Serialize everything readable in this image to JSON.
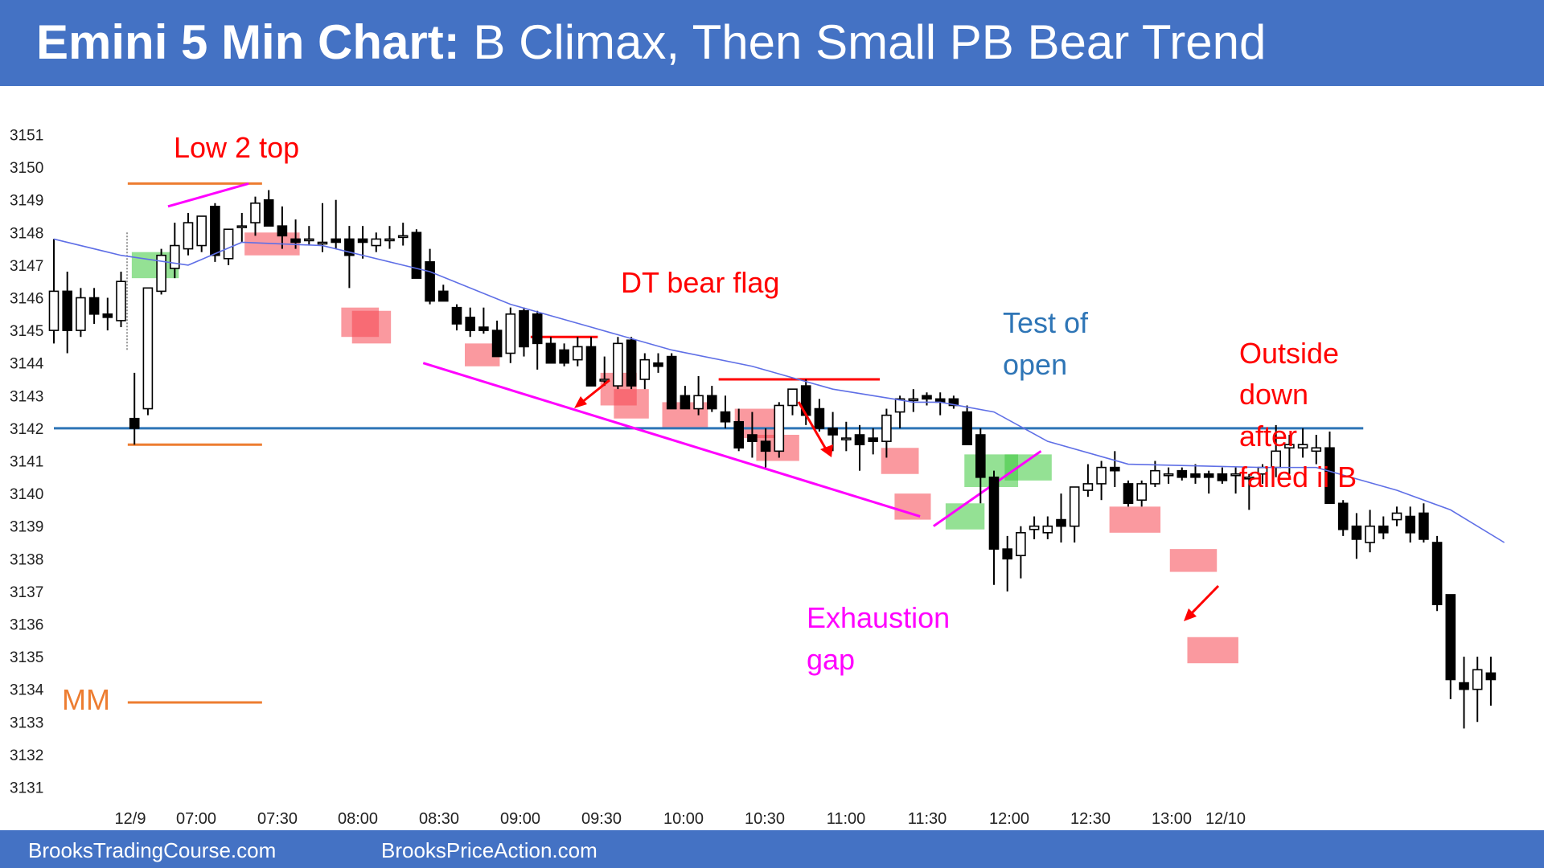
{
  "header": {
    "title_bold": "Emini 5 Min Chart:",
    "title_rest": "B Climax, Then Small PB Bear Trend",
    "background": "#4472c4"
  },
  "footer": {
    "left_text": "BrooksTradingCourse.com",
    "right_text": "BrooksPriceAction.com"
  },
  "chart_data": {
    "type": "candlestick",
    "title": "",
    "y_ticks": [
      3151,
      3150,
      3149,
      3148,
      3147,
      3146,
      3145,
      3144,
      3143,
      3142,
      3141,
      3140,
      3139,
      3138,
      3137,
      3136,
      3135,
      3134,
      3133,
      3132,
      3131
    ],
    "ylim": [
      3130.5,
      3151.5
    ],
    "x_ticks": [
      "12/9",
      "07:00",
      "07:30",
      "08:00",
      "08:30",
      "09:00",
      "09:30",
      "10:00",
      "10:30",
      "11:00",
      "11:30",
      "12:00",
      "12:30",
      "13:00",
      "12/10"
    ],
    "grid": false,
    "candles": [
      {
        "o": 3145,
        "h": 3147.8,
        "l": 3144.6,
        "c": 3146.2
      },
      {
        "o": 3146.2,
        "h": 3146.8,
        "l": 3144.3,
        "c": 3145
      },
      {
        "o": 3145,
        "h": 3146.3,
        "l": 3144.8,
        "c": 3146
      },
      {
        "o": 3146,
        "h": 3146.3,
        "l": 3145.2,
        "c": 3145.5
      },
      {
        "o": 3145.5,
        "h": 3146,
        "l": 3145,
        "c": 3145.4
      },
      {
        "o": 3145.3,
        "h": 3146.8,
        "l": 3145.1,
        "c": 3146.5
      },
      {
        "o": 3142.3,
        "h": 3143.7,
        "l": 3141.5,
        "c": 3142
      },
      {
        "o": 3142.6,
        "h": 3146.3,
        "l": 3142.4,
        "c": 3146.3
      },
      {
        "o": 3146.2,
        "h": 3147.5,
        "l": 3146.1,
        "c": 3147.3
      },
      {
        "o": 3146.9,
        "h": 3148.3,
        "l": 3146.6,
        "c": 3147.6
      },
      {
        "o": 3147.5,
        "h": 3148.6,
        "l": 3147.3,
        "c": 3148.3
      },
      {
        "o": 3147.6,
        "h": 3148.5,
        "l": 3147.4,
        "c": 3148.5
      },
      {
        "o": 3148.8,
        "h": 3148.9,
        "l": 3147.1,
        "c": 3147.3
      },
      {
        "o": 3147.2,
        "h": 3148.1,
        "l": 3147.0,
        "c": 3148.1
      },
      {
        "o": 3148.2,
        "h": 3148.6,
        "l": 3147.7,
        "c": 3148.2
      },
      {
        "o": 3148.3,
        "h": 3149.1,
        "l": 3147.9,
        "c": 3148.9
      },
      {
        "o": 3149.0,
        "h": 3149.3,
        "l": 3148.2,
        "c": 3148.2
      },
      {
        "o": 3148.2,
        "h": 3148.8,
        "l": 3147.5,
        "c": 3147.9
      },
      {
        "o": 3147.8,
        "h": 3148.4,
        "l": 3147.5,
        "c": 3147.7
      },
      {
        "o": 3147.8,
        "h": 3148.2,
        "l": 3147.6,
        "c": 3147.8
      },
      {
        "o": 3147.7,
        "h": 3148.9,
        "l": 3147.4,
        "c": 3147.7
      },
      {
        "o": 3147.8,
        "h": 3149.0,
        "l": 3147.5,
        "c": 3147.7
      },
      {
        "o": 3147.8,
        "h": 3148.2,
        "l": 3146.3,
        "c": 3147.3
      },
      {
        "o": 3147.8,
        "h": 3148.2,
        "l": 3147.2,
        "c": 3147.7
      },
      {
        "o": 3147.6,
        "h": 3148.0,
        "l": 3147.4,
        "c": 3147.8
      },
      {
        "o": 3147.8,
        "h": 3148.2,
        "l": 3147.5,
        "c": 3147.8
      },
      {
        "o": 3147.9,
        "h": 3148.3,
        "l": 3147.6,
        "c": 3147.9
      },
      {
        "o": 3148.0,
        "h": 3148.1,
        "l": 3146.6,
        "c": 3146.6
      },
      {
        "o": 3147.1,
        "h": 3147.5,
        "l": 3145.8,
        "c": 3145.9
      },
      {
        "o": 3146.2,
        "h": 3146.4,
        "l": 3145.9,
        "c": 3145.9
      },
      {
        "o": 3145.7,
        "h": 3145.8,
        "l": 3145.0,
        "c": 3145.2
      },
      {
        "o": 3145.4,
        "h": 3145.7,
        "l": 3144.8,
        "c": 3145.0
      },
      {
        "o": 3145.1,
        "h": 3145.7,
        "l": 3144.9,
        "c": 3145.0
      },
      {
        "o": 3145.0,
        "h": 3145.3,
        "l": 3144.2,
        "c": 3144.2
      },
      {
        "o": 3144.3,
        "h": 3145.7,
        "l": 3144.0,
        "c": 3145.5
      },
      {
        "o": 3145.6,
        "h": 3145.7,
        "l": 3144.2,
        "c": 3144.5
      },
      {
        "o": 3145.5,
        "h": 3145.6,
        "l": 3143.8,
        "c": 3144.6
      },
      {
        "o": 3144.6,
        "h": 3144.8,
        "l": 3144.0,
        "c": 3144.0
      },
      {
        "o": 3144.4,
        "h": 3144.6,
        "l": 3143.9,
        "c": 3144.0
      },
      {
        "o": 3144.1,
        "h": 3144.8,
        "l": 3143.9,
        "c": 3144.5
      },
      {
        "o": 3144.5,
        "h": 3144.8,
        "l": 3143.3,
        "c": 3143.3
      },
      {
        "o": 3143.5,
        "h": 3144.2,
        "l": 3143.3,
        "c": 3143.5
      },
      {
        "o": 3143.3,
        "h": 3144.8,
        "l": 3143.2,
        "c": 3144.6
      },
      {
        "o": 3144.7,
        "h": 3144.8,
        "l": 3143.2,
        "c": 3143.3
      },
      {
        "o": 3143.5,
        "h": 3144.3,
        "l": 3143.2,
        "c": 3144.1
      },
      {
        "o": 3144.0,
        "h": 3144.3,
        "l": 3143.7,
        "c": 3143.9
      },
      {
        "o": 3144.2,
        "h": 3144.3,
        "l": 3142.6,
        "c": 3142.6
      },
      {
        "o": 3143.0,
        "h": 3143.3,
        "l": 3142.6,
        "c": 3142.6
      },
      {
        "o": 3142.6,
        "h": 3143.6,
        "l": 3142.4,
        "c": 3143.0
      },
      {
        "o": 3143.0,
        "h": 3143.3,
        "l": 3142.5,
        "c": 3142.6
      },
      {
        "o": 3142.5,
        "h": 3143.0,
        "l": 3142.0,
        "c": 3142.2
      },
      {
        "o": 3142.2,
        "h": 3142.6,
        "l": 3141.3,
        "c": 3141.4
      },
      {
        "o": 3141.8,
        "h": 3142.5,
        "l": 3141.1,
        "c": 3141.6
      },
      {
        "o": 3141.6,
        "h": 3142.0,
        "l": 3140.8,
        "c": 3141.3
      },
      {
        "o": 3141.3,
        "h": 3142.8,
        "l": 3141.1,
        "c": 3142.7
      },
      {
        "o": 3142.7,
        "h": 3143.2,
        "l": 3142.4,
        "c": 3143.2
      },
      {
        "o": 3143.3,
        "h": 3143.5,
        "l": 3142.1,
        "c": 3142.4
      },
      {
        "o": 3142.6,
        "h": 3142.9,
        "l": 3141.9,
        "c": 3142.0
      },
      {
        "o": 3142.0,
        "h": 3142.5,
        "l": 3141.3,
        "c": 3141.8
      },
      {
        "o": 3141.7,
        "h": 3142.2,
        "l": 3141.3,
        "c": 3141.7
      },
      {
        "o": 3141.8,
        "h": 3142.1,
        "l": 3140.7,
        "c": 3141.5
      },
      {
        "o": 3141.7,
        "h": 3142.0,
        "l": 3141.2,
        "c": 3141.6
      },
      {
        "o": 3141.6,
        "h": 3142.6,
        "l": 3141.1,
        "c": 3142.4
      },
      {
        "o": 3142.5,
        "h": 3143.0,
        "l": 3142.0,
        "c": 3142.9
      },
      {
        "o": 3142.9,
        "h": 3143.2,
        "l": 3142.5,
        "c": 3142.9
      },
      {
        "o": 3143.0,
        "h": 3143.1,
        "l": 3142.7,
        "c": 3142.9
      },
      {
        "o": 3142.9,
        "h": 3143.1,
        "l": 3142.4,
        "c": 3142.8
      },
      {
        "o": 3142.9,
        "h": 3143.0,
        "l": 3142.6,
        "c": 3142.7
      },
      {
        "o": 3142.5,
        "h": 3142.7,
        "l": 3141.5,
        "c": 3141.5
      },
      {
        "o": 3141.8,
        "h": 3142.0,
        "l": 3139.7,
        "c": 3140.5
      },
      {
        "o": 3140.5,
        "h": 3140.7,
        "l": 3137.2,
        "c": 3138.3
      },
      {
        "o": 3138.3,
        "h": 3138.7,
        "l": 3137.0,
        "c": 3138.0
      },
      {
        "o": 3138.1,
        "h": 3139.0,
        "l": 3137.4,
        "c": 3138.8
      },
      {
        "o": 3138.9,
        "h": 3139.3,
        "l": 3138.6,
        "c": 3139.0
      },
      {
        "o": 3138.8,
        "h": 3139.3,
        "l": 3138.6,
        "c": 3139.0
      },
      {
        "o": 3139.2,
        "h": 3140.0,
        "l": 3138.5,
        "c": 3139.0
      },
      {
        "o": 3139.0,
        "h": 3140.2,
        "l": 3138.5,
        "c": 3140.2
      },
      {
        "o": 3140.1,
        "h": 3140.9,
        "l": 3139.9,
        "c": 3140.3
      },
      {
        "o": 3140.3,
        "h": 3141.0,
        "l": 3139.8,
        "c": 3140.8
      },
      {
        "o": 3140.8,
        "h": 3141.3,
        "l": 3140.2,
        "c": 3140.7
      },
      {
        "o": 3140.3,
        "h": 3140.4,
        "l": 3139.6,
        "c": 3139.7
      },
      {
        "o": 3139.8,
        "h": 3140.4,
        "l": 3139.6,
        "c": 3140.3
      },
      {
        "o": 3140.3,
        "h": 3141.0,
        "l": 3140.2,
        "c": 3140.7
      },
      {
        "o": 3140.6,
        "h": 3140.8,
        "l": 3140.3,
        "c": 3140.6
      },
      {
        "o": 3140.7,
        "h": 3140.8,
        "l": 3140.4,
        "c": 3140.5
      },
      {
        "o": 3140.6,
        "h": 3140.9,
        "l": 3140.3,
        "c": 3140.5
      },
      {
        "o": 3140.6,
        "h": 3140.7,
        "l": 3140.0,
        "c": 3140.5
      },
      {
        "o": 3140.6,
        "h": 3140.8,
        "l": 3140.3,
        "c": 3140.4
      },
      {
        "o": 3140.6,
        "h": 3140.8,
        "l": 3140.0,
        "c": 3140.6
      },
      {
        "o": 3140.5,
        "h": 3140.6,
        "l": 3139.5,
        "c": 3140.5
      },
      {
        "o": 3140.6,
        "h": 3140.9,
        "l": 3140.3,
        "c": 3140.8
      },
      {
        "o": 3140.8,
        "h": 3142.1,
        "l": 3140.5,
        "c": 3141.3
      },
      {
        "o": 3141.4,
        "h": 3141.8,
        "l": 3140.6,
        "c": 3141.5
      },
      {
        "o": 3141.4,
        "h": 3142.0,
        "l": 3141.1,
        "c": 3141.5
      },
      {
        "o": 3141.3,
        "h": 3141.8,
        "l": 3140.9,
        "c": 3141.4
      },
      {
        "o": 3141.4,
        "h": 3141.9,
        "l": 3139.7,
        "c": 3139.7
      },
      {
        "o": 3139.7,
        "h": 3139.8,
        "l": 3138.7,
        "c": 3138.9
      },
      {
        "o": 3139.0,
        "h": 3139.4,
        "l": 3138.0,
        "c": 3138.6
      },
      {
        "o": 3138.5,
        "h": 3139.5,
        "l": 3138.2,
        "c": 3139.0
      },
      {
        "o": 3139.0,
        "h": 3139.3,
        "l": 3138.6,
        "c": 3138.8
      },
      {
        "o": 3139.2,
        "h": 3139.6,
        "l": 3139.0,
        "c": 3139.4
      },
      {
        "o": 3139.3,
        "h": 3139.6,
        "l": 3138.5,
        "c": 3138.8
      },
      {
        "o": 3139.4,
        "h": 3139.7,
        "l": 3138.5,
        "c": 3138.6
      },
      {
        "o": 3138.5,
        "h": 3138.7,
        "l": 3136.4,
        "c": 3136.6
      },
      {
        "o": 3136.9,
        "h": 3136.9,
        "l": 3133.7,
        "c": 3134.3
      },
      {
        "o": 3134.2,
        "h": 3135.0,
        "l": 3132.8,
        "c": 3134.0
      },
      {
        "o": 3134.0,
        "h": 3135.0,
        "l": 3133.0,
        "c": 3134.6
      },
      {
        "o": 3134.5,
        "h": 3135.0,
        "l": 3133.5,
        "c": 3134.3
      }
    ],
    "ema": [
      [
        0,
        3147.8
      ],
      [
        5,
        3147.3
      ],
      [
        10,
        3147
      ],
      [
        14,
        3147.7
      ],
      [
        20,
        3147.6
      ],
      [
        28,
        3146.8
      ],
      [
        34,
        3145.8
      ],
      [
        40,
        3145.1
      ],
      [
        46,
        3144.4
      ],
      [
        52,
        3143.9
      ],
      [
        58,
        3143.2
      ],
      [
        64,
        3142.8
      ],
      [
        66,
        3142.8
      ],
      [
        70,
        3142.5
      ],
      [
        74,
        3141.6
      ],
      [
        80,
        3140.9
      ],
      [
        90,
        3140.8
      ],
      [
        94,
        3140.8
      ],
      [
        100,
        3140.1
      ],
      [
        104,
        3139.5
      ],
      [
        108,
        3138.5
      ]
    ],
    "ema_color": "#5f6fe6",
    "horizontal_lines": [
      {
        "y": 3142.0,
        "x_from": 0,
        "x_to": 97.5,
        "color": "#2e75b6"
      },
      {
        "y": 3149.5,
        "x_from": 5.5,
        "x_to": 15.5,
        "color": "#ed7d31"
      },
      {
        "y": 3141.5,
        "x_from": 5.5,
        "x_to": 15.5,
        "color": "#ed7d31"
      },
      {
        "y": 3133.6,
        "x_from": 5.5,
        "x_to": 15.5,
        "color": "#ed7d31"
      },
      {
        "y": 3144.8,
        "x_from": 35.5,
        "x_to": 40.5,
        "color": "#ff0000"
      },
      {
        "y": 3143.5,
        "x_from": 49.5,
        "x_to": 61.5,
        "color": "#ff0000"
      }
    ],
    "trend_lines": [
      {
        "x1": 8.5,
        "y1": 3148.8,
        "x2": 14.5,
        "y2": 3149.5,
        "color": "#ff00ff"
      },
      {
        "x1": 27.5,
        "y1": 3144.0,
        "x2": 64.5,
        "y2": 3139.3,
        "color": "#ff00ff"
      },
      {
        "x1": 65.5,
        "y1": 3139.0,
        "x2": 73.5,
        "y2": 3141.3,
        "color": "#ff00ff"
      }
    ],
    "highlights": [
      {
        "x1": 5.8,
        "x2": 9.3,
        "y1": 3146.6,
        "y2": 3147.4,
        "color": "green"
      },
      {
        "x1": 14.2,
        "x2": 18.3,
        "y1": 3147.3,
        "y2": 3148.0,
        "color": "red"
      },
      {
        "x1": 21.4,
        "x2": 24.2,
        "y1": 3144.8,
        "y2": 3145.7,
        "color": "red"
      },
      {
        "x1": 22.2,
        "x2": 25.1,
        "y1": 3144.6,
        "y2": 3145.6,
        "color": "red"
      },
      {
        "x1": 30.6,
        "x2": 33.2,
        "y1": 3143.9,
        "y2": 3144.6,
        "color": "red"
      },
      {
        "x1": 40.7,
        "x2": 43.4,
        "y1": 3142.7,
        "y2": 3143.7,
        "color": "red"
      },
      {
        "x1": 41.7,
        "x2": 44.3,
        "y1": 3142.3,
        "y2": 3143.2,
        "color": "red"
      },
      {
        "x1": 45.3,
        "x2": 48.7,
        "y1": 3142.0,
        "y2": 3142.8,
        "color": "red"
      },
      {
        "x1": 50.7,
        "x2": 54.3,
        "y1": 3141.7,
        "y2": 3142.6,
        "color": "red"
      },
      {
        "x1": 52.3,
        "x2": 55.5,
        "y1": 3141.0,
        "y2": 3141.8,
        "color": "red"
      },
      {
        "x1": 61.6,
        "x2": 64.4,
        "y1": 3140.6,
        "y2": 3141.4,
        "color": "red"
      },
      {
        "x1": 62.6,
        "x2": 65.3,
        "y1": 3139.2,
        "y2": 3140.0,
        "color": "red"
      },
      {
        "x1": 66.4,
        "x2": 69.3,
        "y1": 3138.9,
        "y2": 3139.7,
        "color": "green"
      },
      {
        "x1": 67.8,
        "x2": 71.8,
        "y1": 3140.2,
        "y2": 3141.2,
        "color": "green"
      },
      {
        "x1": 70.8,
        "x2": 74.3,
        "y1": 3140.4,
        "y2": 3141.2,
        "color": "green"
      },
      {
        "x1": 78.6,
        "x2": 82.4,
        "y1": 3138.8,
        "y2": 3139.6,
        "color": "red"
      },
      {
        "x1": 83.1,
        "x2": 86.6,
        "y1": 3137.6,
        "y2": 3138.3,
        "color": "red"
      },
      {
        "x1": 84.4,
        "x2": 88.2,
        "y1": 3134.8,
        "y2": 3135.6,
        "color": "red"
      }
    ],
    "annotations": [
      {
        "text": "Low 2 top",
        "color": "#ff0000"
      },
      {
        "text": "DT bear flag",
        "color": "#ff0000"
      },
      {
        "text": "Test of",
        "color": "#2e75b6"
      },
      {
        "text": "open",
        "color": "#2e75b6"
      },
      {
        "text": "Outside",
        "color": "#ff0000"
      },
      {
        "text": "down",
        "color": "#ff0000"
      },
      {
        "text": "after",
        "color": "#ff0000"
      },
      {
        "text": "failed ii B",
        "color": "#ff0000"
      },
      {
        "text": "Exhaustion",
        "color": "#ff00ff"
      },
      {
        "text": "gap",
        "color": "#ff00ff"
      },
      {
        "text": "MM",
        "color": "#ed7d31"
      }
    ]
  }
}
